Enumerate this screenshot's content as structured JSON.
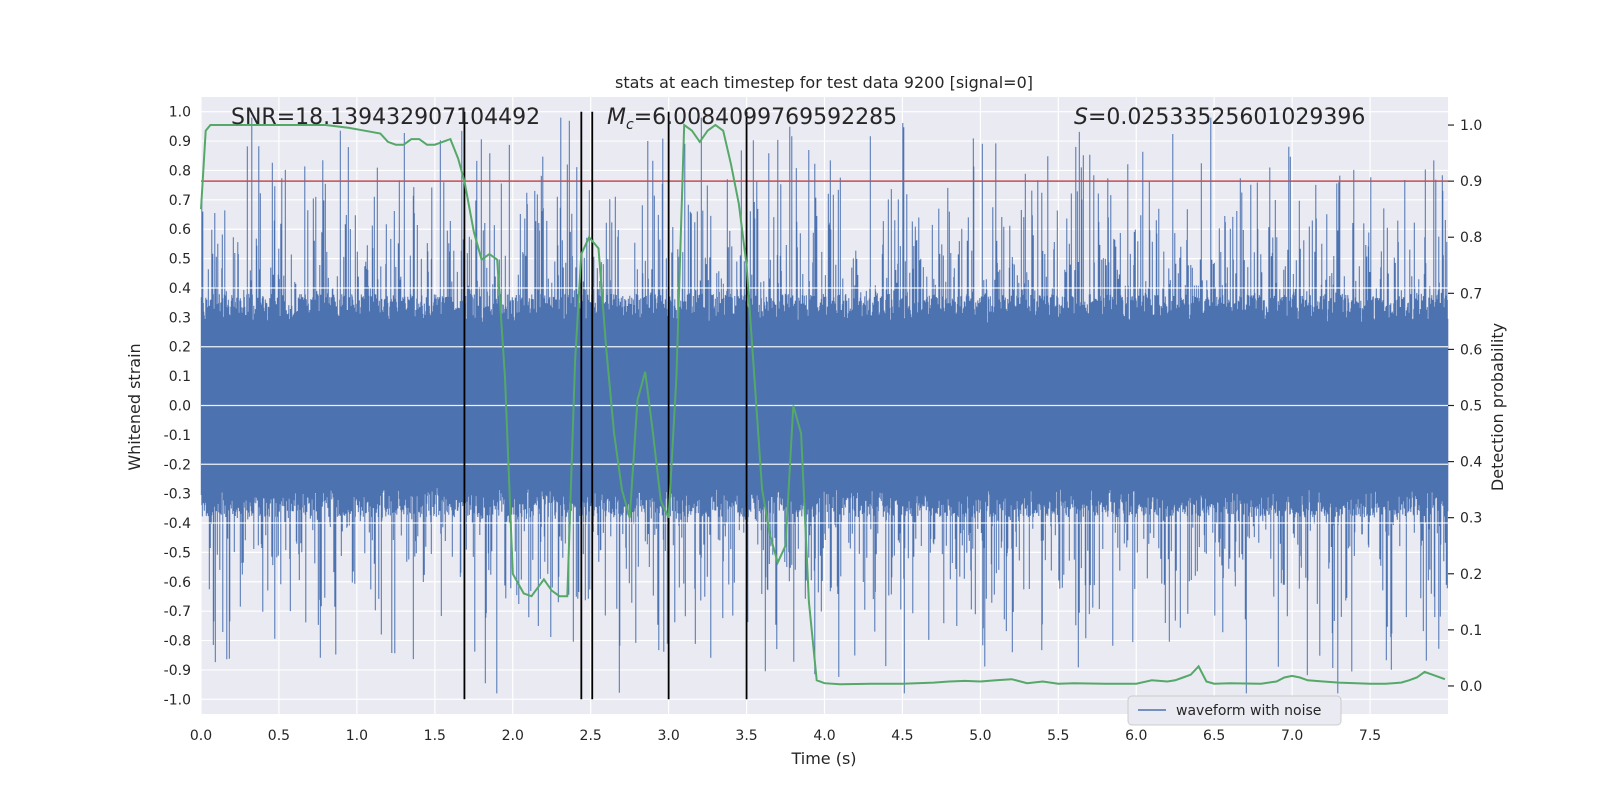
{
  "chart_data": {
    "type": "line",
    "title": "stats at each timestep for test data 9200 [signal=0]",
    "xlabel": "Time (s)",
    "ylabel": "Whitened strain",
    "y2label": "Detection probability",
    "xlim": [
      0.0,
      8.0
    ],
    "ylim": [
      -1.05,
      1.05
    ],
    "y2lim": [
      -0.05,
      1.05
    ],
    "x_ticks": [
      0.0,
      0.5,
      1.0,
      1.5,
      2.0,
      2.5,
      3.0,
      3.5,
      4.0,
      4.5,
      5.0,
      5.5,
      6.0,
      6.5,
      7.0,
      7.5
    ],
    "x_tick_labels": [
      "0.0",
      "0.5",
      "1.0",
      "1.5",
      "2.0",
      "2.5",
      "3.0",
      "3.5",
      "4.0",
      "4.5",
      "5.0",
      "5.5",
      "6.0",
      "6.5",
      "7.0",
      "7.5"
    ],
    "y_ticks": [
      1.0,
      0.9,
      0.8,
      0.7,
      0.6,
      0.5,
      0.4,
      0.3,
      0.2,
      0.1,
      0.0,
      -0.1,
      -0.2,
      -0.3,
      -0.4,
      -0.5,
      -0.6,
      -0.7,
      -0.8,
      -0.9,
      -1.0
    ],
    "y_tick_labels": [
      "1.0",
      "0.9",
      "0.8",
      "0.7",
      "0.6",
      "0.5",
      "0.4",
      "0.3",
      "0.2",
      "0.1",
      "0.0",
      "-0.1",
      "-0.2",
      "-0.3",
      "-0.4",
      "-0.5",
      "-0.6",
      "-0.7",
      "-0.8",
      "-0.9",
      "-1.0"
    ],
    "y2_ticks": [
      1.0,
      0.9,
      0.8,
      0.7,
      0.6,
      0.5,
      0.4,
      0.3,
      0.2,
      0.1,
      0.0
    ],
    "y2_tick_labels": [
      "1.0",
      "0.9",
      "0.8",
      "0.7",
      "0.6",
      "0.5",
      "0.4",
      "0.3",
      "0.2",
      "0.1",
      "0.0"
    ],
    "annotations": {
      "snr": "SNR=18.139432907104492",
      "mc_symbol": "M",
      "mc_sub": "c",
      "mc_value": "=6.0084099769592285",
      "s_symbol": "S",
      "s_value": "=0.02533525601029396"
    },
    "legend": {
      "label": "waveform with noise",
      "placement": "lower right"
    },
    "threshold": {
      "value": 0.9,
      "axis": "y2",
      "color": "#c44e52"
    },
    "vlines": [
      1.69,
      2.44,
      2.51,
      3.0,
      3.5
    ],
    "waveform": {
      "name": "waveform with noise",
      "color": "#4c72b0",
      "sigma": 0.2,
      "seed": 9200
    },
    "probability": {
      "color": "#55a868",
      "x": [
        0.0,
        0.03,
        0.06,
        0.12,
        0.2,
        0.4,
        0.6,
        0.8,
        0.95,
        1.05,
        1.15,
        1.2,
        1.25,
        1.3,
        1.35,
        1.4,
        1.45,
        1.5,
        1.6,
        1.65,
        1.69,
        1.75,
        1.8,
        1.85,
        1.9,
        1.95,
        2.0,
        2.07,
        2.12,
        2.2,
        2.25,
        2.3,
        2.35,
        2.4,
        2.44,
        2.49,
        2.55,
        2.6,
        2.65,
        2.7,
        2.75,
        2.8,
        2.85,
        2.9,
        2.95,
        3.0,
        3.05,
        3.1,
        3.15,
        3.2,
        3.25,
        3.3,
        3.35,
        3.4,
        3.45,
        3.5,
        3.55,
        3.6,
        3.65,
        3.7,
        3.75,
        3.8,
        3.85,
        3.9,
        3.95,
        4.0,
        4.1,
        4.3,
        4.5,
        4.7,
        4.8,
        4.9,
        5.0,
        5.1,
        5.2,
        5.3,
        5.4,
        5.5,
        5.6,
        5.8,
        6.0,
        6.1,
        6.2,
        6.25,
        6.3,
        6.35,
        6.4,
        6.45,
        6.5,
        6.6,
        6.8,
        6.9,
        6.95,
        7.0,
        7.05,
        7.1,
        7.2,
        7.3,
        7.5,
        7.6,
        7.7,
        7.75,
        7.8,
        7.85,
        7.9,
        7.98
      ],
      "y": [
        0.85,
        0.99,
        1.0,
        1.0,
        1.0,
        1.0,
        1.0,
        1.0,
        0.995,
        0.99,
        0.985,
        0.97,
        0.965,
        0.965,
        0.975,
        0.975,
        0.965,
        0.965,
        0.975,
        0.94,
        0.9,
        0.81,
        0.76,
        0.77,
        0.76,
        0.55,
        0.2,
        0.165,
        0.16,
        0.19,
        0.17,
        0.16,
        0.16,
        0.58,
        0.77,
        0.8,
        0.78,
        0.6,
        0.45,
        0.35,
        0.3,
        0.51,
        0.56,
        0.45,
        0.33,
        0.3,
        0.55,
        1.0,
        0.99,
        0.97,
        0.99,
        1.0,
        0.99,
        0.93,
        0.86,
        0.75,
        0.55,
        0.35,
        0.27,
        0.22,
        0.25,
        0.5,
        0.45,
        0.15,
        0.01,
        0.005,
        0.003,
        0.004,
        0.004,
        0.006,
        0.008,
        0.009,
        0.008,
        0.01,
        0.012,
        0.005,
        0.008,
        0.004,
        0.005,
        0.004,
        0.004,
        0.01,
        0.008,
        0.01,
        0.015,
        0.02,
        0.035,
        0.008,
        0.004,
        0.005,
        0.004,
        0.008,
        0.015,
        0.018,
        0.015,
        0.01,
        0.008,
        0.006,
        0.004,
        0.004,
        0.006,
        0.01,
        0.015,
        0.025,
        0.02,
        0.012
      ]
    }
  }
}
